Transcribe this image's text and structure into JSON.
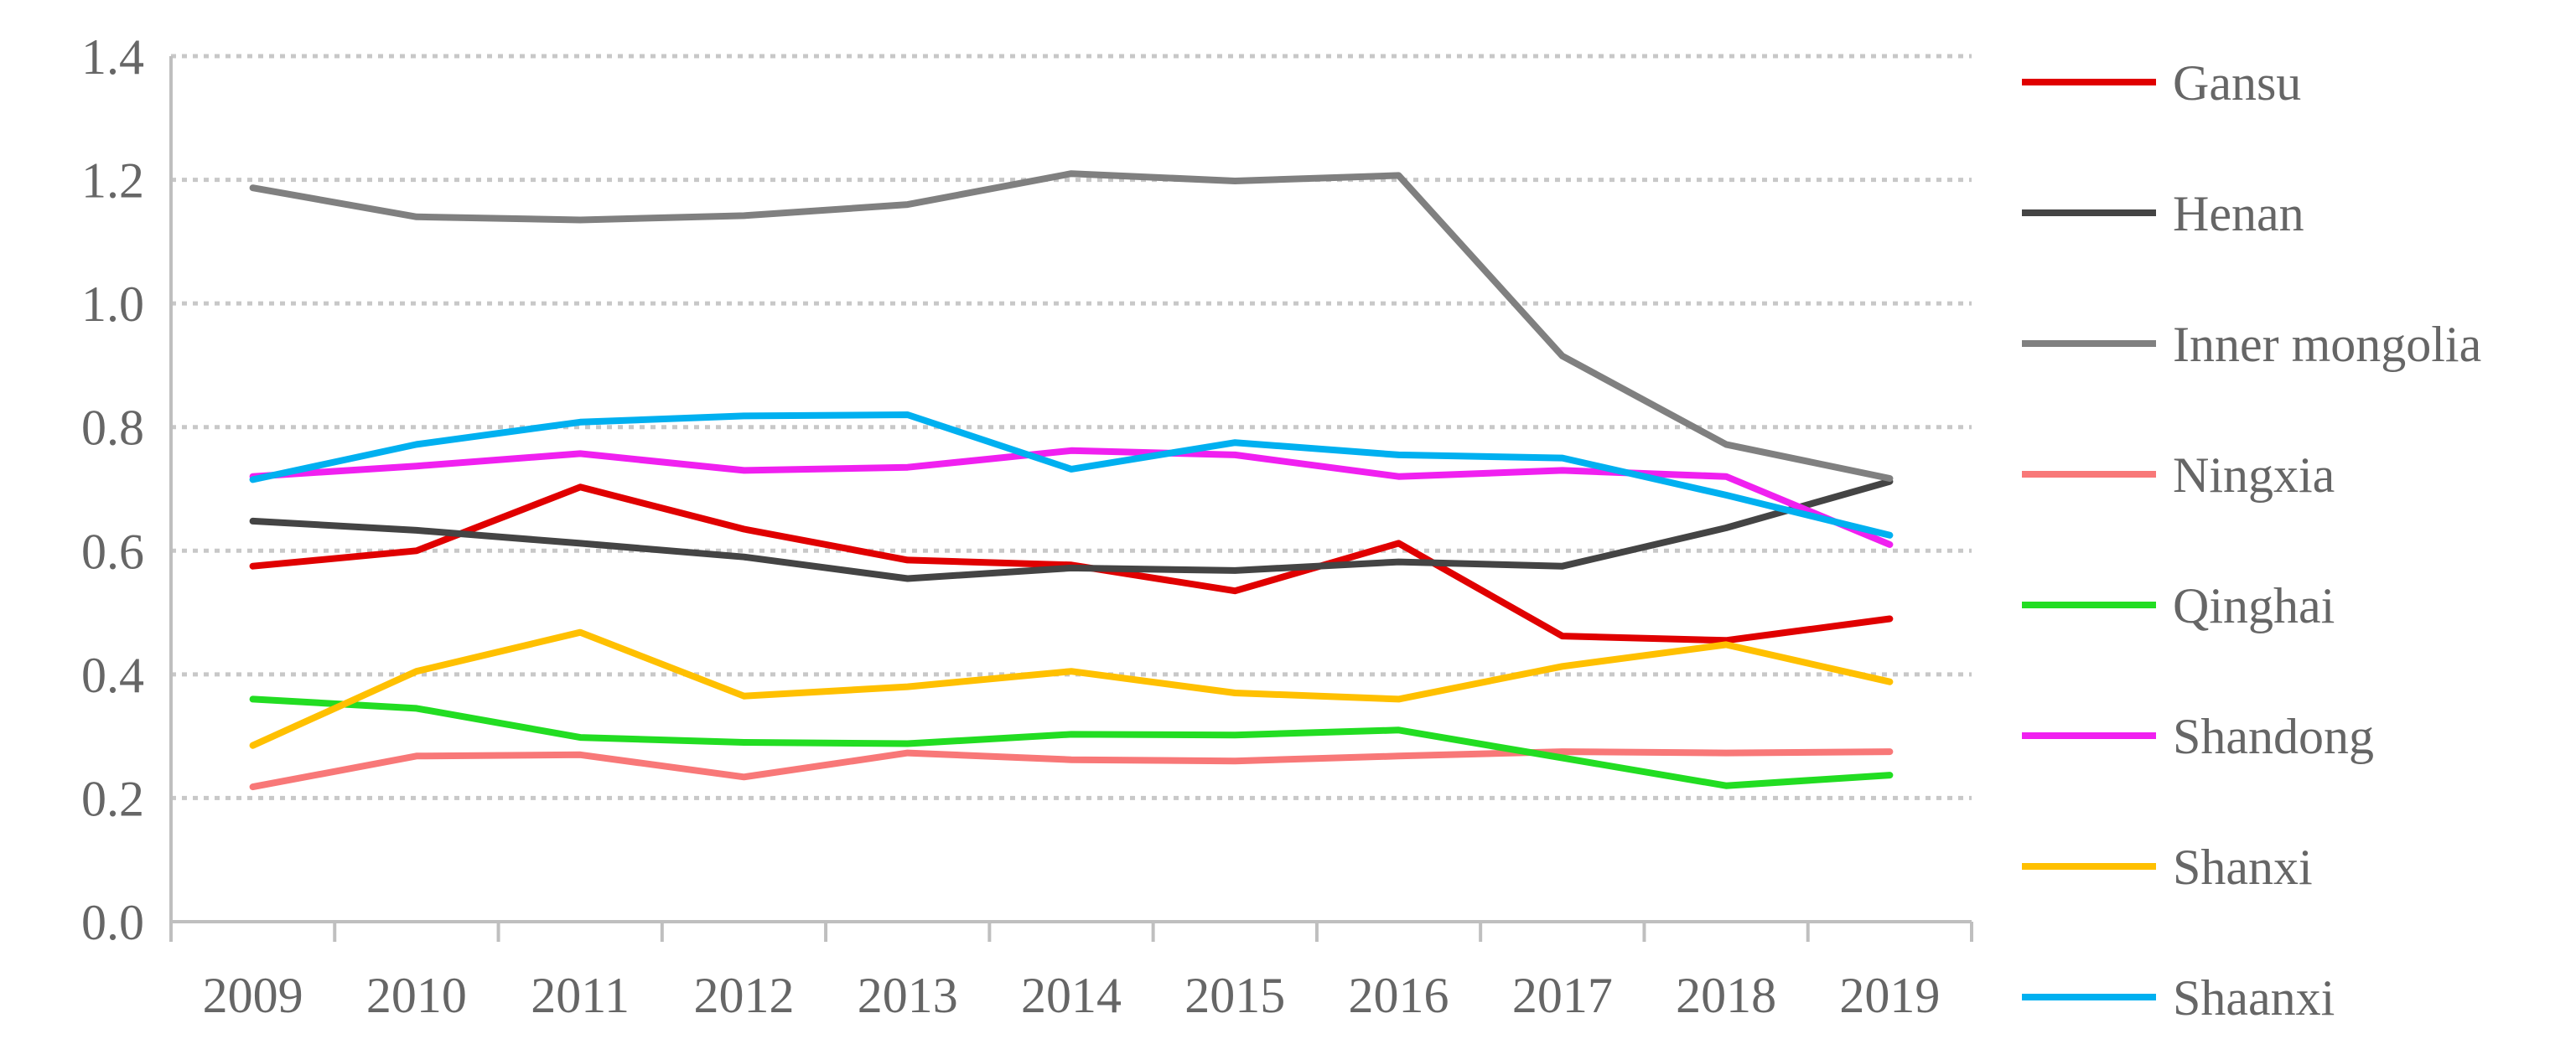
{
  "chart_data": {
    "type": "line",
    "title": "",
    "xlabel": "",
    "ylabel": "",
    "categories": [
      "2009",
      "2010",
      "2011",
      "2012",
      "2013",
      "2014",
      "2015",
      "2016",
      "2017",
      "2018",
      "2019"
    ],
    "ylim": [
      0,
      1.4
    ],
    "yticks": [
      "0.0",
      "0.2",
      "0.4",
      "0.6",
      "0.8",
      "1.0",
      "1.2",
      "1.4"
    ],
    "grid": "horizontal dotted",
    "legend_position": "right",
    "series": [
      {
        "name": "Gansu",
        "color": "#E00000",
        "values": [
          0.575,
          0.6,
          0.703,
          0.635,
          0.585,
          0.577,
          0.535,
          0.612,
          0.462,
          0.455,
          0.49
        ]
      },
      {
        "name": "Henan",
        "color": "#444444",
        "values": [
          0.648,
          0.633,
          0.612,
          0.59,
          0.555,
          0.572,
          0.568,
          0.582,
          0.575,
          0.637,
          0.712
        ]
      },
      {
        "name": "Inner mongolia",
        "color": "#808080",
        "values": [
          1.187,
          1.14,
          1.135,
          1.142,
          1.16,
          1.21,
          1.198,
          1.207,
          0.915,
          0.772,
          0.717
        ]
      },
      {
        "name": "Ningxia",
        "color": "#F87878",
        "values": [
          0.218,
          0.268,
          0.27,
          0.234,
          0.273,
          0.262,
          0.26,
          0.268,
          0.275,
          0.273,
          0.275
        ]
      },
      {
        "name": "Qinghai",
        "color": "#22DD22",
        "values": [
          0.36,
          0.345,
          0.298,
          0.29,
          0.288,
          0.303,
          0.302,
          0.31,
          0.265,
          0.22,
          0.237
        ]
      },
      {
        "name": "Shandong",
        "color": "#F020F0",
        "values": [
          0.72,
          0.737,
          0.757,
          0.73,
          0.735,
          0.762,
          0.755,
          0.72,
          0.73,
          0.72,
          0.61
        ]
      },
      {
        "name": "Shanxi",
        "color": "#FFC000",
        "values": [
          0.285,
          0.405,
          0.468,
          0.365,
          0.38,
          0.405,
          0.37,
          0.36,
          0.413,
          0.448,
          0.388
        ]
      },
      {
        "name": "Shaanxi",
        "color": "#00B0F0",
        "values": [
          0.715,
          0.772,
          0.808,
          0.818,
          0.82,
          0.732,
          0.775,
          0.755,
          0.75,
          0.69,
          0.625
        ]
      }
    ]
  }
}
